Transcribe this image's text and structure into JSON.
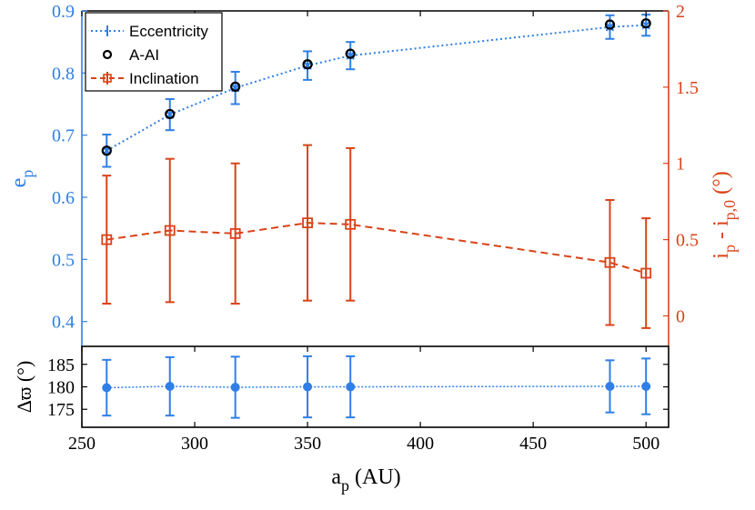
{
  "colors": {
    "blue": "#2f7fe6",
    "orange": "#d94318",
    "black": "#000000"
  },
  "chart_data": [
    {
      "type": "line",
      "panel": "top",
      "xlim": [
        250,
        510
      ],
      "x_ticks": [
        250,
        300,
        350,
        400,
        450,
        500
      ],
      "left_axis": {
        "label_main": "e",
        "label_sub": "p",
        "ylim": [
          0.36,
          0.9
        ],
        "ticks": [
          0.4,
          0.5,
          0.6,
          0.7,
          0.8,
          0.9
        ],
        "tick_labels": [
          "0.4",
          "0.5",
          "0.6",
          "0.7",
          "0.8",
          "0.9"
        ]
      },
      "right_axis": {
        "label_parts": [
          "i",
          "p",
          " - i",
          "p,0",
          " (°)"
        ],
        "ylim": [
          -0.2,
          2
        ],
        "ticks": [
          0,
          0.5,
          1,
          1.5,
          2
        ],
        "tick_labels": [
          "0",
          "0.5",
          "1",
          "1.5",
          "2"
        ]
      },
      "legend": {
        "position": "top-left",
        "entries": [
          "Eccentricity",
          "A-AI",
          "Inclination"
        ]
      },
      "series": [
        {
          "name": "Eccentricity",
          "axis": "left",
          "style": "dotted-line-with-errorbars",
          "x": [
            261,
            289,
            318,
            350,
            369,
            484,
            500
          ],
          "values": [
            0.675,
            0.733,
            0.776,
            0.812,
            0.828,
            0.874,
            0.877
          ],
          "errors": [
            0.026,
            0.025,
            0.026,
            0.023,
            0.022,
            0.019,
            0.017
          ]
        },
        {
          "name": "A-AI",
          "axis": "left",
          "style": "open-circles",
          "x": [
            261,
            289,
            318,
            350,
            369,
            484,
            500
          ],
          "values": [
            0.675,
            0.734,
            0.778,
            0.814,
            0.831,
            0.878,
            0.88
          ]
        },
        {
          "name": "Inclination",
          "axis": "right",
          "style": "dashed-line-squares-with-errorbars",
          "x": [
            261,
            289,
            318,
            350,
            369,
            484,
            500
          ],
          "values": [
            0.5,
            0.56,
            0.54,
            0.61,
            0.6,
            0.35,
            0.28
          ],
          "errors": [
            0.42,
            0.47,
            0.46,
            0.51,
            0.5,
            0.41,
            0.36
          ]
        }
      ]
    },
    {
      "type": "line",
      "panel": "bottom",
      "xlim": [
        250,
        510
      ],
      "x_ticks": [
        250,
        300,
        350,
        400,
        450,
        500
      ],
      "x_tick_labels": [
        "250",
        "300",
        "350",
        "400",
        "450",
        "500"
      ],
      "xlabel_main": "a",
      "xlabel_sub": "p",
      "xlabel_unit": " (AU)",
      "ylabel": "Δϖ (°)",
      "ylim": [
        171,
        189
      ],
      "ticks": [
        175,
        180,
        185
      ],
      "tick_labels": [
        "175",
        "180",
        "185"
      ],
      "series": [
        {
          "name": "Delta varpi",
          "style": "dotted-line-with-errorbars",
          "x": [
            261,
            289,
            318,
            350,
            369,
            484,
            500
          ],
          "values": [
            179.8,
            180.1,
            179.9,
            180.0,
            180.0,
            180.1,
            180.1
          ],
          "errors": [
            6.2,
            6.5,
            6.8,
            6.8,
            6.8,
            5.8,
            6.2
          ]
        }
      ]
    }
  ]
}
